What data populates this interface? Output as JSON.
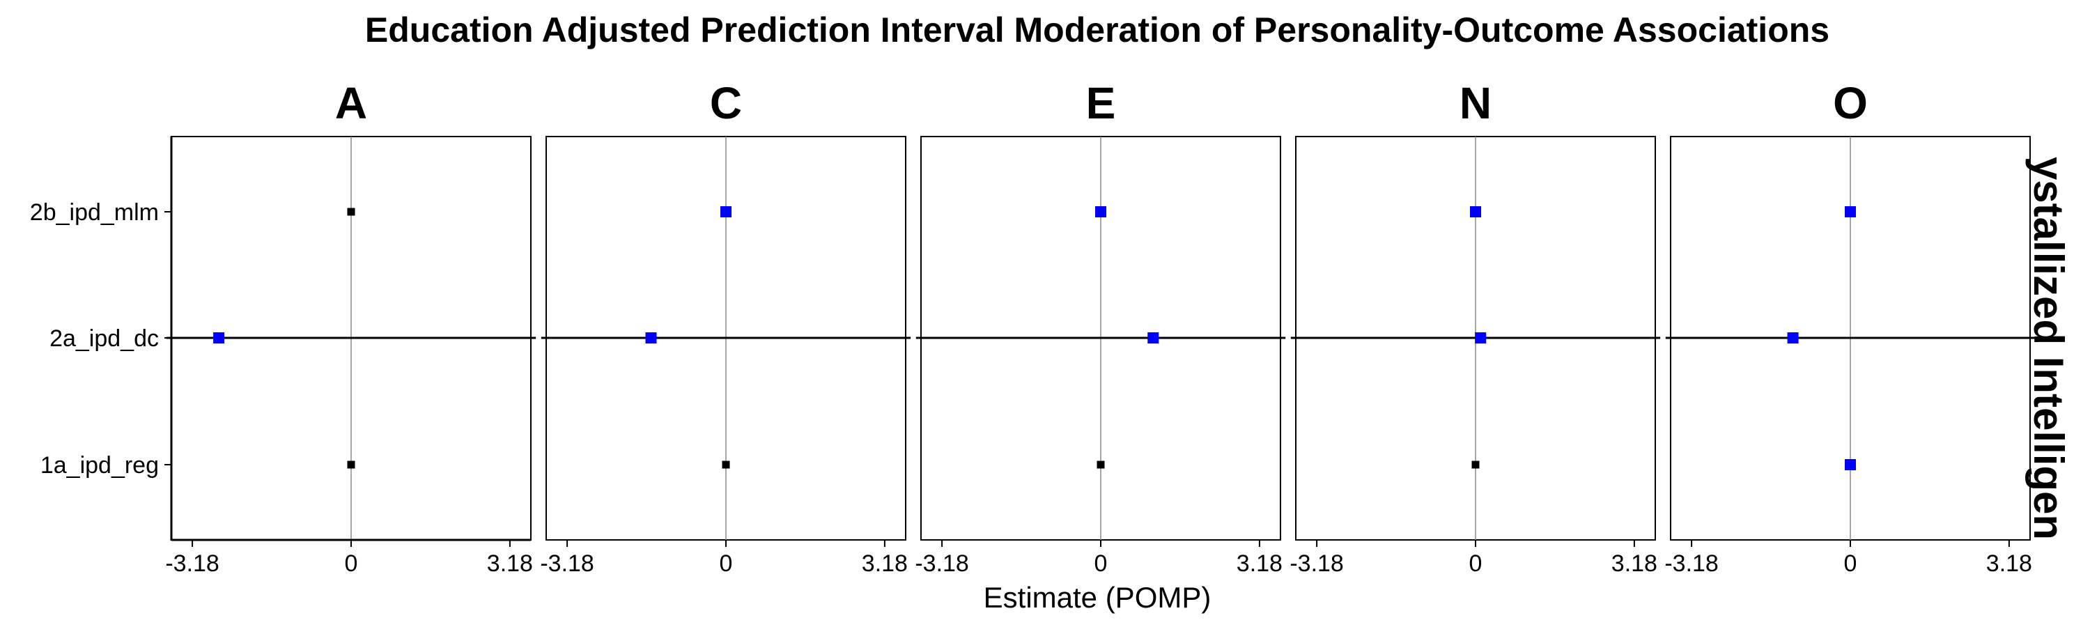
{
  "chart_data": {
    "type": "scatter",
    "title": "Education Adjusted Prediction Interval Moderation of Personality-Outcome Associations",
    "xlabel": "Estimate (POMP)",
    "ylabel": "",
    "strip_label_right": "ystallized Intelligen",
    "xlim": [
      -3.6,
      3.6
    ],
    "x_ticks": [
      -3.18,
      0,
      3.18
    ],
    "x_tick_labels": [
      "-3.18",
      "0",
      "3.18"
    ],
    "categories": [
      "2b_ipd_mlm",
      "2a_ipd_dc",
      "1a_ipd_reg"
    ],
    "reference_line_x": 0,
    "grid": false,
    "colors": {
      "significant": "#0000ff",
      "nonsignificant": "#000000",
      "interval": "#000000",
      "reference": "#888888"
    },
    "facets": [
      {
        "name": "A",
        "points": [
          {
            "category": "2b_ipd_mlm",
            "estimate": 0.0,
            "lower": null,
            "upper": null,
            "color": "black"
          },
          {
            "category": "2a_ipd_dc",
            "estimate": -2.65,
            "lower": -3.7,
            "upper": 3.7,
            "color": "blue"
          },
          {
            "category": "1a_ipd_reg",
            "estimate": 0.0,
            "lower": null,
            "upper": null,
            "color": "black"
          }
        ]
      },
      {
        "name": "C",
        "points": [
          {
            "category": "2b_ipd_mlm",
            "estimate": 0.0,
            "lower": null,
            "upper": null,
            "color": "blue"
          },
          {
            "category": "2a_ipd_dc",
            "estimate": -1.5,
            "lower": -3.7,
            "upper": 3.7,
            "color": "blue"
          },
          {
            "category": "1a_ipd_reg",
            "estimate": 0.0,
            "lower": null,
            "upper": null,
            "color": "black"
          }
        ]
      },
      {
        "name": "E",
        "points": [
          {
            "category": "2b_ipd_mlm",
            "estimate": 0.0,
            "lower": null,
            "upper": null,
            "color": "blue"
          },
          {
            "category": "2a_ipd_dc",
            "estimate": 1.05,
            "lower": -3.7,
            "upper": 3.7,
            "color": "blue"
          },
          {
            "category": "1a_ipd_reg",
            "estimate": 0.0,
            "lower": null,
            "upper": null,
            "color": "black"
          }
        ]
      },
      {
        "name": "N",
        "points": [
          {
            "category": "2b_ipd_mlm",
            "estimate": 0.0,
            "lower": null,
            "upper": null,
            "color": "blue"
          },
          {
            "category": "2a_ipd_dc",
            "estimate": 0.1,
            "lower": -3.7,
            "upper": 3.7,
            "color": "blue"
          },
          {
            "category": "1a_ipd_reg",
            "estimate": 0.0,
            "lower": null,
            "upper": null,
            "color": "black"
          }
        ]
      },
      {
        "name": "O",
        "points": [
          {
            "category": "2b_ipd_mlm",
            "estimate": 0.0,
            "lower": null,
            "upper": null,
            "color": "blue"
          },
          {
            "category": "2a_ipd_dc",
            "estimate": -1.15,
            "lower": -3.7,
            "upper": 3.7,
            "color": "blue"
          },
          {
            "category": "1a_ipd_reg",
            "estimate": 0.0,
            "lower": null,
            "upper": null,
            "color": "blue"
          }
        ]
      }
    ]
  }
}
